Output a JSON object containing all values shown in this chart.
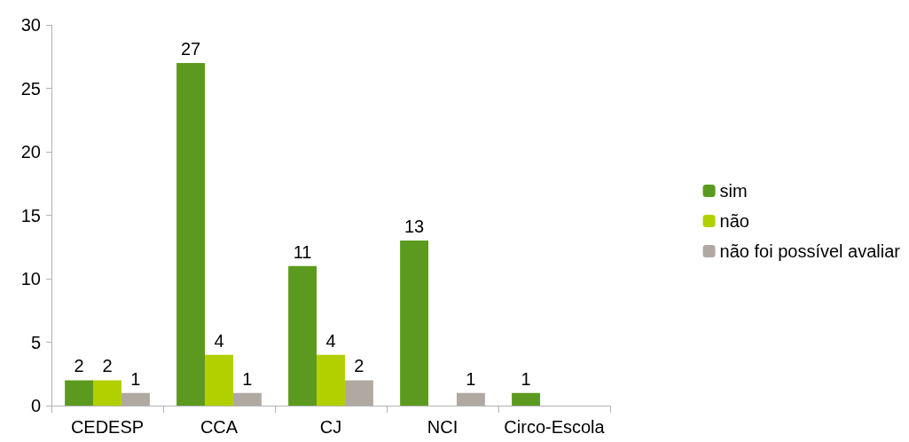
{
  "chart_data": {
    "type": "bar",
    "categories": [
      "CEDESP",
      "CCA",
      "CJ",
      "NCI",
      "Circo-Escola"
    ],
    "series": [
      {
        "name": "sim",
        "color": "#5b9a1e",
        "values": [
          2,
          27,
          11,
          13,
          1
        ],
        "value_labels": [
          "2",
          "27",
          "11",
          "13",
          "1"
        ]
      },
      {
        "name": "não",
        "color": "#b2d000",
        "values": [
          2,
          4,
          4,
          null,
          null
        ],
        "value_labels": [
          "2",
          "4",
          "4",
          null,
          null
        ]
      },
      {
        "name": "não foi possível avaliar",
        "color": "#b0a9a2",
        "values": [
          1,
          1,
          2,
          1,
          null
        ],
        "value_labels": [
          "1",
          "1",
          "2",
          "1",
          null
        ]
      }
    ],
    "ylim": [
      0,
      30
    ],
    "yticks": [
      0,
      5,
      10,
      15,
      20,
      25,
      30
    ],
    "grid": false,
    "legend": "right"
  }
}
